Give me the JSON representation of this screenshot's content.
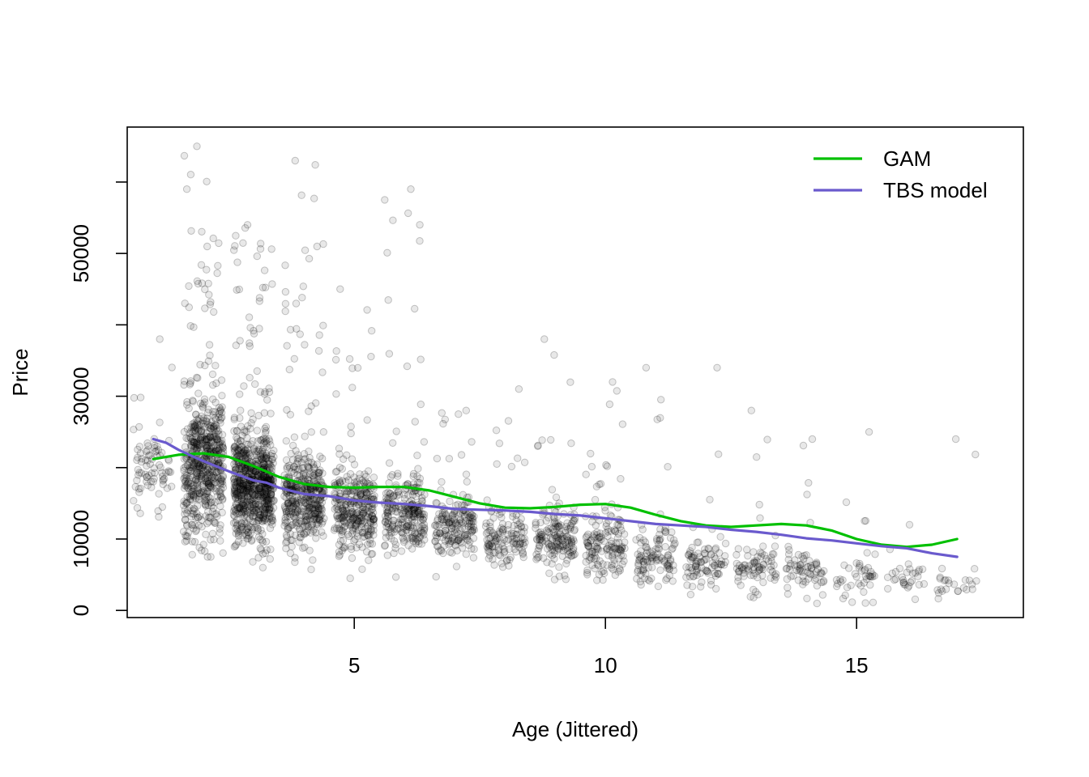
{
  "chart_data": {
    "type": "scatter",
    "xlabel": "Age (Jittered)",
    "ylabel": "Price",
    "xlim": [
      0.48,
      18.32
    ],
    "ylim": [
      -1000,
      67700
    ],
    "x_ticks": [
      5,
      10,
      15
    ],
    "x_tick_labels": [
      "5",
      "10",
      "15"
    ],
    "y_ticks": [
      0,
      10000,
      30000,
      50000
    ],
    "y_tick_labels": [
      "0",
      "10000",
      "30000",
      "50000"
    ],
    "y_minor_ticks": [
      20000,
      40000,
      60000
    ],
    "grid": false,
    "legend_position": "top-right",
    "point_color": "#000000",
    "scatter": {
      "description_of_clusters": "dense vertical clusters of semi-transparent grey points, one per integer age",
      "clusters": [
        {
          "age": 1,
          "count": 80,
          "median": 20000,
          "spread": 6000,
          "max": 38000,
          "min": 13000
        },
        {
          "age": 2,
          "count": 600,
          "median": 20000,
          "spread": 9000,
          "max": 65000,
          "min": 7500
        },
        {
          "age": 3,
          "count": 750,
          "median": 17500,
          "spread": 7000,
          "max": 54000,
          "min": 6000
        },
        {
          "age": 4,
          "count": 420,
          "median": 15500,
          "spread": 6000,
          "max": 63000,
          "min": 5500
        },
        {
          "age": 5,
          "count": 320,
          "median": 14000,
          "spread": 5500,
          "max": 45000,
          "min": 3500
        },
        {
          "age": 6,
          "count": 260,
          "median": 13500,
          "spread": 5000,
          "max": 59000,
          "min": 4500
        },
        {
          "age": 7,
          "count": 180,
          "median": 11500,
          "spread": 4000,
          "max": 28000,
          "min": 4000
        },
        {
          "age": 8,
          "count": 130,
          "median": 10000,
          "spread": 3500,
          "max": 31000,
          "min": 5000
        },
        {
          "age": 9,
          "count": 170,
          "median": 10000,
          "spread": 4000,
          "max": 38000,
          "min": 4000
        },
        {
          "age": 10,
          "count": 150,
          "median": 9000,
          "spread": 4000,
          "max": 32000,
          "min": 3000
        },
        {
          "age": 11,
          "count": 110,
          "median": 7500,
          "spread": 3500,
          "max": 34000,
          "min": 2000
        },
        {
          "age": 12,
          "count": 90,
          "median": 6500,
          "spread": 3000,
          "max": 34000,
          "min": 1800
        },
        {
          "age": 13,
          "count": 80,
          "median": 6000,
          "spread": 2800,
          "max": 28000,
          "min": 1800
        },
        {
          "age": 14,
          "count": 70,
          "median": 5500,
          "spread": 2500,
          "max": 24000,
          "min": 900
        },
        {
          "age": 15,
          "count": 45,
          "median": 4500,
          "spread": 2500,
          "max": 25000,
          "min": 900
        },
        {
          "age": 16,
          "count": 30,
          "median": 4000,
          "spread": 2200,
          "max": 12000,
          "min": 500
        },
        {
          "age": 17,
          "count": 25,
          "median": 3500,
          "spread": 2000,
          "max": 24000,
          "min": 700
        }
      ]
    },
    "series": [
      {
        "name": "GAM",
        "color": "#00c000",
        "x": [
          1,
          1.5,
          2,
          2.5,
          3,
          3.5,
          4,
          4.5,
          5,
          5.5,
          6,
          6.5,
          7,
          7.5,
          8,
          8.5,
          9,
          9.5,
          10,
          10.5,
          11,
          11.5,
          12,
          12.5,
          13,
          13.5,
          14,
          14.5,
          15,
          15.5,
          16,
          16.5,
          17
        ],
        "y": [
          21200,
          21800,
          22000,
          21500,
          20200,
          18700,
          17700,
          17300,
          17200,
          17300,
          17300,
          16800,
          15900,
          15000,
          14400,
          14300,
          14500,
          14800,
          14900,
          14400,
          13400,
          12500,
          11900,
          11700,
          11900,
          12100,
          11900,
          11200,
          10000,
          9200,
          8900,
          9200,
          10000
        ]
      },
      {
        "name": "TBS model",
        "color": "#6a5acd",
        "x": [
          1,
          1.25,
          1.5,
          1.75,
          2,
          2.5,
          3,
          3.25,
          3.5,
          4,
          4.5,
          5,
          5.5,
          6,
          6.5,
          7,
          7.5,
          8,
          8.5,
          9,
          9.5,
          10,
          10.5,
          11,
          11.5,
          12,
          12.5,
          13,
          13.5,
          14,
          14.5,
          15,
          15.5,
          16,
          16.5,
          17
        ],
        "y": [
          24000,
          23500,
          22500,
          21700,
          20900,
          19500,
          18200,
          17900,
          17200,
          16300,
          16000,
          15400,
          15100,
          14900,
          14600,
          14200,
          14100,
          14000,
          13800,
          13500,
          13300,
          12900,
          12500,
          12100,
          11900,
          11700,
          11300,
          11000,
          10600,
          10100,
          9800,
          9400,
          9000,
          8700,
          8000,
          7500
        ]
      }
    ]
  }
}
